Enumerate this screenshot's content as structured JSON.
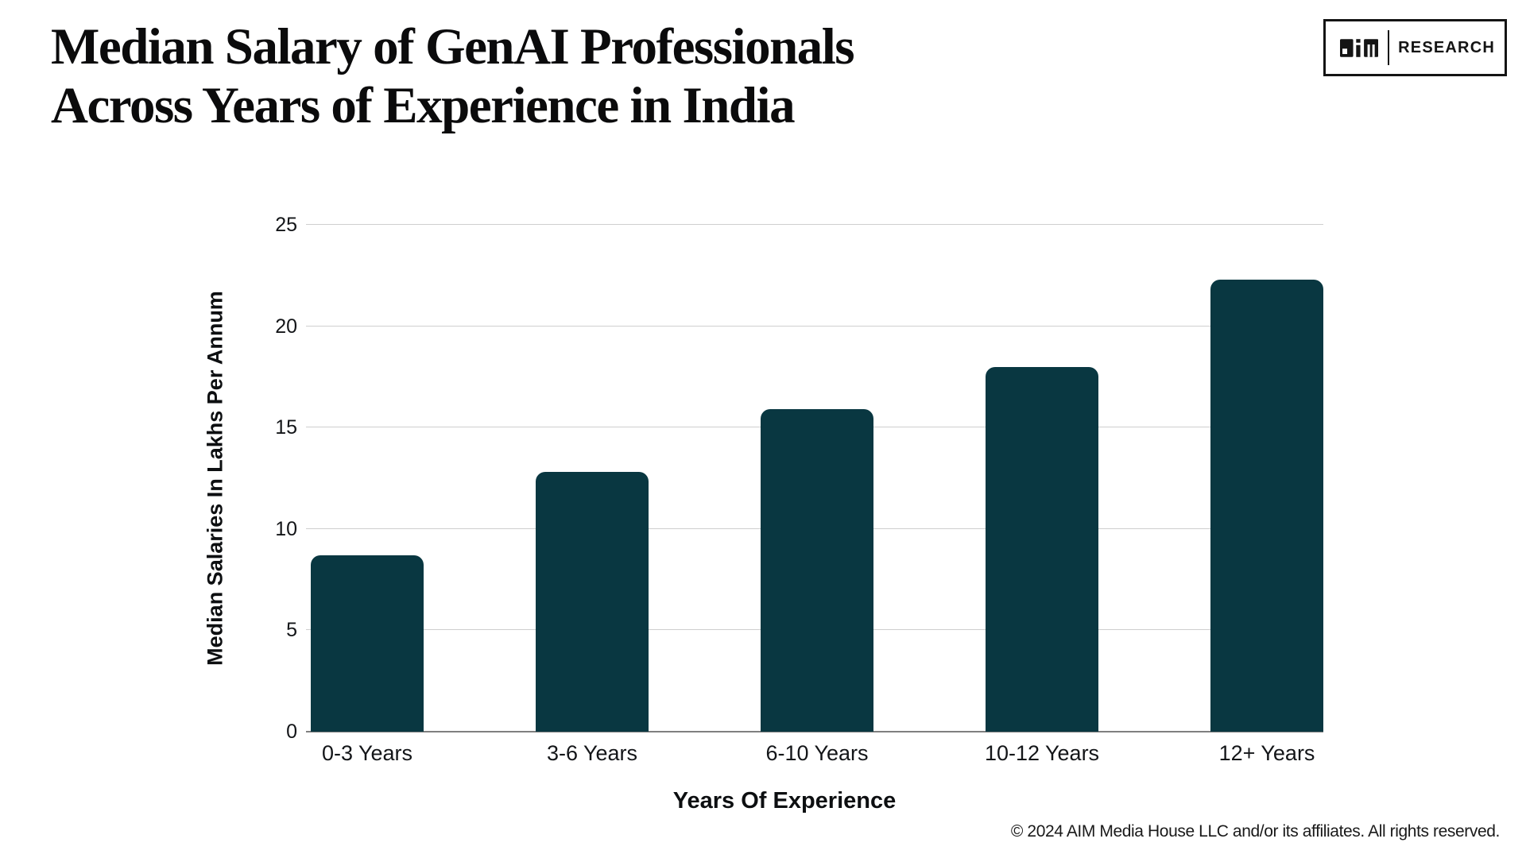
{
  "title": {
    "line1": "Median Salary of GenAI Professionals",
    "line2": "Across Years of Experience in India"
  },
  "logo": {
    "brand": "AIM",
    "research": "RESEARCH"
  },
  "chart_data": {
    "type": "bar",
    "categories": [
      "0-3 Years",
      "3-6 Years",
      "6-10 Years",
      "10-12 Years",
      "12+ Years"
    ],
    "values": [
      8.7,
      12.8,
      15.9,
      18,
      22.3
    ],
    "title": "Median Salary of GenAI Professionals Across Years of Experience in India",
    "xlabel": "Years Of Experience",
    "ylabel": "Median Salaries In Lakhs Per Annum",
    "ylim": [
      0,
      25
    ],
    "yticks": [
      0,
      5,
      10,
      15,
      20,
      25
    ],
    "grid": "horizontal",
    "legend": "none",
    "colors": {
      "bar": "#093741",
      "gridline": "#cfcfcf",
      "axis_line": "#7f7f7f",
      "text": "#131518"
    }
  },
  "footer": "© 2024 AIM Media House LLC and/or its affiliates. All rights reserved."
}
